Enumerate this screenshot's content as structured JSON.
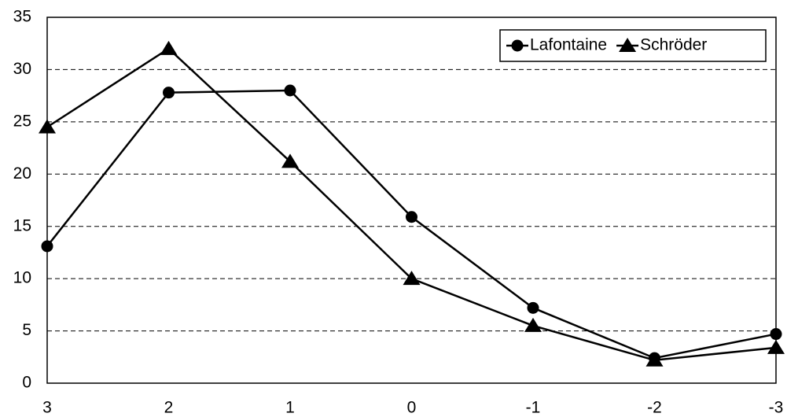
{
  "chart_data": {
    "type": "line",
    "categories": [
      "3",
      "2",
      "1",
      "0",
      "-1",
      "-2",
      "-3"
    ],
    "series": [
      {
        "name": "Lafontaine",
        "color": "#000000",
        "marker": "circle",
        "values": [
          13.1,
          27.8,
          28.0,
          15.9,
          7.2,
          2.4,
          4.7
        ]
      },
      {
        "name": "Schröder",
        "color": "#000000",
        "marker": "triangle",
        "values": [
          24.5,
          32.0,
          21.2,
          10.0,
          5.5,
          2.2,
          3.4
        ]
      }
    ],
    "ylim": [
      0,
      35
    ],
    "yticks": [
      0,
      5,
      10,
      15,
      20,
      25,
      30,
      35
    ],
    "grid": true,
    "legend": "top-right"
  }
}
